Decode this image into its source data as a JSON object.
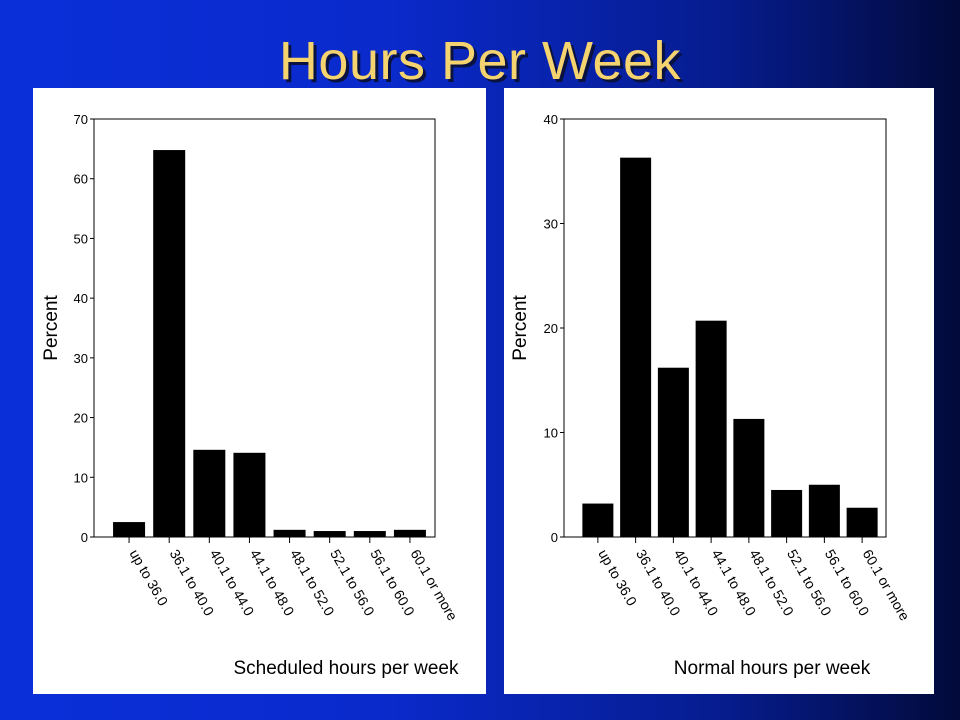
{
  "title": "Hours Per Week",
  "chart_data": [
    {
      "type": "bar",
      "title": "",
      "xlabel": "Scheduled hours per week",
      "ylabel": "Percent",
      "ylim": [
        0,
        70
      ],
      "yticks": [
        0,
        10,
        20,
        30,
        40,
        50,
        60,
        70
      ],
      "categories": [
        "up to 36.0",
        "36.1 to 40.0",
        "40.1 to 44.0",
        "44.1 to 48.0",
        "48.1 to 52.0",
        "52.1 to 56.0",
        "56.1 to 60.0",
        "60.1 or more"
      ],
      "values": [
        2.5,
        64.8,
        14.6,
        14.1,
        1.2,
        1.0,
        1.0,
        1.2
      ],
      "grid": false
    },
    {
      "type": "bar",
      "title": "",
      "xlabel": "Normal hours per week",
      "ylabel": "Percent",
      "ylim": [
        0,
        40
      ],
      "yticks": [
        0,
        10,
        20,
        30,
        40
      ],
      "categories": [
        "up to 36.0",
        "36.1 to 40.0",
        "40.1 to 44.0",
        "44.1 to 48.0",
        "48.1 to 52.0",
        "52.1 to 56.0",
        "56.1 to 60.0",
        "60.1 or more"
      ],
      "values": [
        3.2,
        36.3,
        16.2,
        20.7,
        11.3,
        4.5,
        5.0,
        2.8
      ],
      "grid": false
    }
  ]
}
